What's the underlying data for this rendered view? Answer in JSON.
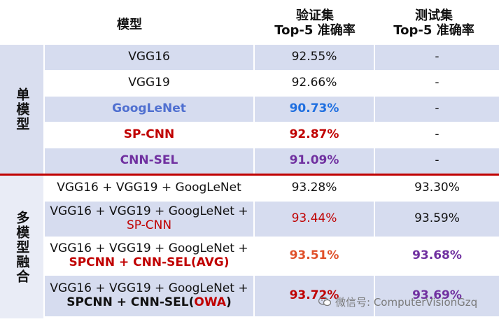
{
  "header": {
    "model": "模型",
    "val_line1": "验证集",
    "val_line2": "Top-5 准确率",
    "test_line1": "测试集",
    "test_line2": "Top-5 准确率"
  },
  "groups": {
    "single": "单模型",
    "multi": "多模型融合"
  },
  "single_rows": [
    {
      "model": "VGG16",
      "val": "92.55%",
      "test": "-"
    },
    {
      "model": "VGG19",
      "val": "92.66%",
      "test": "-"
    },
    {
      "model": "GoogLeNet",
      "val": "90.73%",
      "test": "-"
    },
    {
      "model": "SP-CNN",
      "val": "92.87%",
      "test": "-"
    },
    {
      "model": "CNN-SEL",
      "val": "91.09%",
      "test": "-"
    }
  ],
  "multi_rows": [
    {
      "line1": "VGG16 + VGG19 + GoogLeNet",
      "line2": "",
      "line2b": "",
      "line2c": "",
      "val": "93.28%",
      "test": "93.30%"
    },
    {
      "line1": "VGG16 + VGG19 + GoogLeNet +",
      "line2": "SP-CNN",
      "line2b": "",
      "line2c": "",
      "val": "93.44%",
      "test": "93.59%"
    },
    {
      "line1": "VGG16 + VGG19 + GoogLeNet +",
      "line2": "SPCNN + CNN-SEL(AVG)",
      "line2b": "",
      "line2c": "",
      "val": "93.51%",
      "test": "93.68%"
    },
    {
      "line1": "VGG16 + VGG19 + GoogLeNet +",
      "line2": "SPCNN + CNN-SEL(",
      "line2b": "OWA",
      "line2c": ")",
      "val": "93.72%",
      "test": "93.69%"
    }
  ],
  "watermark": "微信号: ComputerVisionGzq",
  "colors": {
    "accent_red": "#c00000",
    "blue": "#4f6fd0",
    "purple": "#7030a0",
    "orange_red": "#e0502a"
  }
}
